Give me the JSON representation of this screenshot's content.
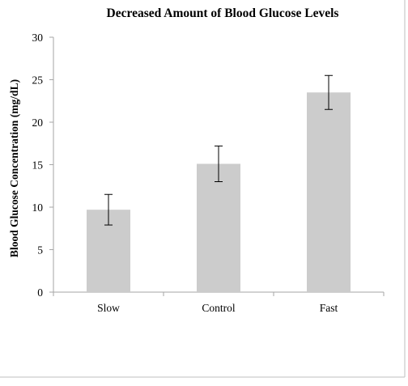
{
  "chart_data": {
    "type": "bar",
    "title": "Decreased Amount of Blood Glucose Levels",
    "xlabel": "",
    "ylabel": "Blood Glucose Concentration (mg/dL)",
    "categories": [
      "Slow",
      "Control",
      "Fast"
    ],
    "values": [
      9.7,
      15.1,
      23.5
    ],
    "error": [
      1.8,
      2.1,
      2.0
    ],
    "ylim": [
      0,
      30
    ],
    "yticks": [
      0,
      5,
      10,
      15,
      20,
      25,
      30
    ],
    "grid": false,
    "legend": "none",
    "bar_color": "#cccccc",
    "axis_color": "#a6a6a6",
    "frame_color": "#bfbfbf"
  }
}
